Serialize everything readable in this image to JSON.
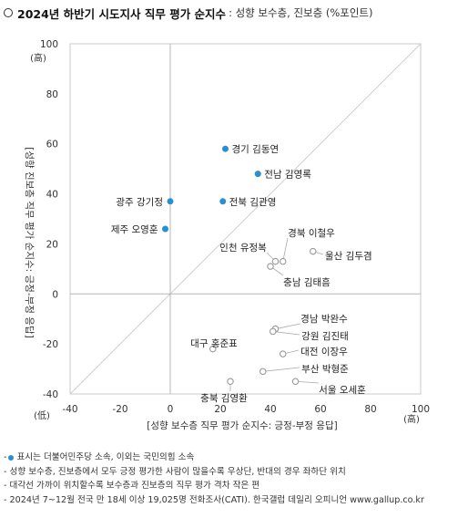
{
  "header": {
    "title": "2024년 하반기 시도지사 직무 평가 순지수",
    "subtitle": ": 성향 보수층, 진보층 (%포인트)"
  },
  "chart_data": {
    "type": "scatter",
    "xlabel": "[성향 보수층 직무 평가 순지수: 긍정-부정 응답]",
    "ylabel": "[성향 진보층 직무 평가 순지수: 긍정-부정 응답]",
    "x_high_label": "(高)",
    "x_low_label": "(低)",
    "y_high_label": "(高)",
    "xlim": [
      -40,
      100
    ],
    "ylim": [
      -40,
      100
    ],
    "x_ticks": [
      -40,
      -20,
      0,
      20,
      40,
      60,
      80,
      100
    ],
    "y_ticks": [
      -40,
      -20,
      0,
      20,
      40,
      60,
      80,
      100
    ],
    "grid": false,
    "reference_line": "y=x diagonal",
    "points": [
      {
        "label": "경기 김동연",
        "x": 22,
        "y": 58,
        "party": "democratic"
      },
      {
        "label": "전남 김영록",
        "x": 35,
        "y": 48,
        "party": "democratic"
      },
      {
        "label": "광주 강기정",
        "x": 0,
        "y": 37,
        "party": "democratic"
      },
      {
        "label": "전북 김관영",
        "x": 21,
        "y": 37,
        "party": "democratic"
      },
      {
        "label": "제주 오영훈",
        "x": -2,
        "y": 26,
        "party": "democratic"
      },
      {
        "label": "경북 이철우",
        "x": 45,
        "y": 13,
        "party": "ppp"
      },
      {
        "label": "인천 유정복",
        "x": 42,
        "y": 13,
        "party": "ppp"
      },
      {
        "label": "울산 김두겸",
        "x": 57,
        "y": 17,
        "party": "ppp"
      },
      {
        "label": "충남 김태흠",
        "x": 40,
        "y": 11,
        "party": "ppp"
      },
      {
        "label": "경남 박완수",
        "x": 42,
        "y": -14,
        "party": "ppp"
      },
      {
        "label": "강원 김진태",
        "x": 41,
        "y": -15,
        "party": "ppp"
      },
      {
        "label": "대구 홍준표",
        "x": 17,
        "y": -22,
        "party": "ppp"
      },
      {
        "label": "대전 이장우",
        "x": 45,
        "y": -24,
        "party": "ppp"
      },
      {
        "label": "부산 박형준",
        "x": 37,
        "y": -31,
        "party": "ppp"
      },
      {
        "label": "서울 오세훈",
        "x": 50,
        "y": -35,
        "party": "ppp"
      },
      {
        "label": "충북 김영환",
        "x": 24,
        "y": -35,
        "party": "ppp"
      }
    ],
    "colors": {
      "democratic": "#2a8fd1",
      "ppp": "#999999"
    }
  },
  "notes": [
    "표시는 더불어민주당 소속, 이외는 국민의힘 소속",
    "- 성향 보수층, 진보층에서 모두 긍정 평가한 사람이 많을수록 우상단, 반대의 경우 좌하단 위치",
    "- 대각선 가까이 위치할수록 보수층과 진보층의 직무 평가 격차 작은 편",
    "- 2024년 7~12월 전국 만 18세 이상 19,025명 전화조사(CATI). 한국갤럽 데일리 오피니언 www.gallup.co.kr"
  ]
}
